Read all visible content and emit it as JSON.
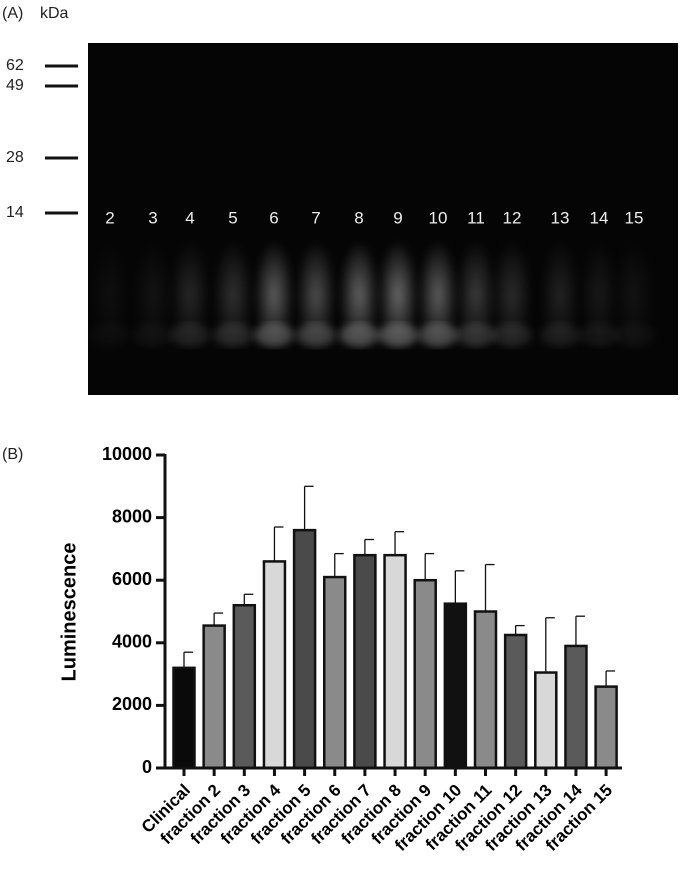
{
  "gel": {
    "panel_label": "(A)",
    "unit": "kDa",
    "markers": [
      62,
      49,
      28,
      14
    ],
    "lanes": [
      "2",
      "3",
      "4",
      "5",
      "6",
      "7",
      "8",
      "9",
      "10",
      "11",
      "12",
      "13",
      "14",
      "15"
    ]
  },
  "chart_data": {
    "type": "bar",
    "panel_label": "(B)",
    "y_label": "Luminescence",
    "categories": [
      "Clinical",
      "fraction 2",
      "fraction 3",
      "fraction 4",
      "fraction 5",
      "fraction 6",
      "fraction 7",
      "fraction 8",
      "fraction 9",
      "fraction 10",
      "fraction 11",
      "fraction 12",
      "fraction 13",
      "fraction 14",
      "fraction 15"
    ],
    "values": [
      3200,
      4550,
      5200,
      6600,
      7600,
      6100,
      6800,
      6800,
      6000,
      5250,
      5000,
      4250,
      3050,
      3900,
      2600
    ],
    "errors": [
      500,
      400,
      350,
      1100,
      1400,
      750,
      500,
      750,
      850,
      1050,
      1500,
      300,
      1750,
      950,
      500
    ],
    "colors": [
      "#0a0a0a",
      "#8a8a8a",
      "#5a5a5a",
      "#d8d8d8",
      "#4a4a4a",
      "#8a8a8a",
      "#4a4a4a",
      "#d8d8d8",
      "#8a8a8a",
      "#111111",
      "#8a8a8a",
      "#5a5a5a",
      "#d8d8d8",
      "#5a5a5a",
      "#8a8a8a"
    ],
    "ylim": [
      0,
      10000
    ],
    "yticks": [
      0,
      2000,
      4000,
      6000,
      8000,
      10000
    ]
  }
}
